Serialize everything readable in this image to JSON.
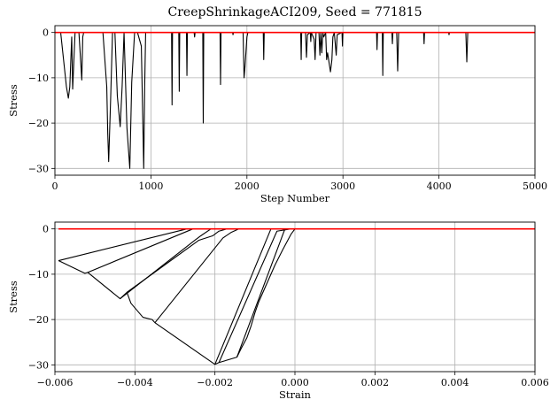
{
  "chart_data": [
    {
      "type": "line",
      "title": "CreepShrinkageACI209, Seed = 771815",
      "xlabel": "Step Number",
      "ylabel": "Stress",
      "xlim": [
        0,
        5000
      ],
      "ylim": [
        -31.5,
        1.5
      ],
      "xticks": [
        0,
        1000,
        2000,
        3000,
        4000,
        5000
      ],
      "xtick_labels": [
        "0",
        "1000",
        "2000",
        "3000",
        "4000",
        "5000"
      ],
      "yticks": [
        0,
        -10,
        -20,
        -30
      ],
      "ytick_labels": [
        "0",
        "−10",
        "−20",
        "−30"
      ],
      "grid": true,
      "series": [
        {
          "color": "#000000",
          "x": [
            0,
            60,
            120,
            140,
            155,
            175,
            185,
            210,
            250,
            280,
            290,
            300,
            420,
            500,
            540,
            550,
            560,
            580,
            600,
            610,
            625,
            650,
            680,
            700,
            720,
            750,
            780,
            800,
            830,
            860,
            900,
            925,
            935,
            945,
            1000,
            1215,
            1220,
            1225,
            1240,
            1290,
            1295,
            1300,
            1310,
            1370,
            1375,
            1380,
            1450,
            1455,
            1460,
            1540,
            1545,
            1550,
            1720,
            1725,
            1730,
            1850,
            1855,
            1860,
            1960,
            1970,
            1980,
            2000,
            2010,
            2170,
            2175,
            2180,
            2560,
            2565,
            2570,
            2610,
            2620,
            2630,
            2660,
            2665,
            2670,
            2700,
            2710,
            2720,
            2750,
            2760,
            2770,
            2780,
            2790,
            2800,
            2820,
            2830,
            2840,
            2870,
            2885,
            2895,
            2910,
            2930,
            2940,
            2990,
            2995,
            3000,
            3350,
            3355,
            3360,
            3410,
            3415,
            3420,
            3510,
            3515,
            3520,
            3560,
            3570,
            3580,
            3840,
            3845,
            3850,
            4100,
            4105,
            4110,
            4280,
            4290,
            4300,
            5000
          ],
          "y": [
            0,
            0,
            -12,
            -14.5,
            -12,
            -1,
            -12.5,
            0,
            0,
            -10.5,
            -1,
            0,
            0,
            0,
            -12,
            -22,
            -28.5,
            -15,
            0,
            0,
            0,
            -14,
            -20.8,
            -12,
            0,
            -21,
            -30,
            -11,
            0,
            0,
            -3,
            -30,
            -12,
            0,
            0,
            0,
            -16,
            0,
            0,
            0,
            -13,
            0,
            0,
            0,
            -9.5,
            0,
            0,
            -1,
            0,
            0,
            -20,
            0,
            0,
            -11.5,
            0,
            0,
            -0.5,
            0,
            0,
            -10,
            -7.5,
            -1,
            0,
            0,
            -6,
            0,
            0,
            -6,
            0,
            0,
            -5.5,
            -0.5,
            0,
            -2,
            0,
            -1.5,
            -6,
            0,
            0,
            -5,
            0,
            -4.5,
            0,
            -1,
            0,
            -6,
            -4.5,
            -8.7,
            -6,
            -1,
            0,
            -5,
            -0.5,
            0,
            -3,
            0,
            0,
            -3.8,
            0,
            0,
            -9.5,
            0,
            0,
            -2.5,
            0,
            0,
            -8.5,
            0,
            0,
            -2.5,
            0,
            0,
            -0.5,
            0,
            0,
            -6.5,
            0,
            0
          ]
        },
        {
          "color": "#ff0000",
          "x": [
            0,
            5000
          ],
          "y": [
            0,
            0
          ]
        }
      ]
    },
    {
      "type": "line",
      "title": "",
      "xlabel": "Strain",
      "ylabel": "Stress",
      "xlim": [
        -0.006,
        0.006
      ],
      "ylim": [
        -31.5,
        1.5
      ],
      "xticks": [
        -0.006,
        -0.004,
        -0.002,
        0.0,
        0.002,
        0.004,
        0.006
      ],
      "xtick_labels": [
        "−0.006",
        "−0.004",
        "−0.002",
        "0.000",
        "0.002",
        "0.004",
        "0.006"
      ],
      "yticks": [
        0,
        -10,
        -20,
        -30
      ],
      "ytick_labels": [
        "0",
        "−10",
        "−20",
        "−30"
      ],
      "grid": true,
      "series": [
        {
          "color": "#000000",
          "x": [
            -0.00591,
            -0.00525,
            -0.00518,
            -0.00437,
            -0.0042,
            -0.0041,
            -0.0038,
            -0.00357,
            -0.0035,
            -0.002,
            -0.0019,
            -0.00145,
            -0.00135,
            -0.0012,
            -0.0011,
            -0.001,
            -0.0009,
            -0.0007,
            -0.0005,
            -0.0003,
            -0.0001,
            0.0
          ],
          "y": [
            -7.0,
            -9.8,
            -9.6,
            -15.4,
            -14.0,
            -16.4,
            -19.5,
            -20.0,
            -20.7,
            -29.9,
            -29.5,
            -28.3,
            -26.5,
            -24.0,
            -21.5,
            -18.5,
            -16.0,
            -12.0,
            -8.0,
            -4.5,
            -1.2,
            0.0
          ]
        },
        {
          "color": "#000000",
          "x": [
            -0.00591,
            -0.0027
          ],
          "y": [
            -7.0,
            0
          ]
        },
        {
          "color": "#000000",
          "x": [
            -0.00518,
            -0.00255
          ],
          "y": [
            -9.6,
            0
          ]
        },
        {
          "color": "#000000",
          "x": [
            -0.00437,
            -0.0025,
            -0.00235,
            -0.0021
          ],
          "y": [
            -15.4,
            -2.5,
            -1.5,
            0
          ]
        },
        {
          "color": "#000000",
          "x": [
            -0.0042,
            -0.0024,
            -0.00205,
            -0.0019,
            -0.0017
          ],
          "y": [
            -14.0,
            -2.5,
            -1.5,
            -0.5,
            0
          ]
        },
        {
          "color": "#000000",
          "x": [
            -0.0035,
            -0.0018,
            -0.0016,
            -0.0014
          ],
          "y": [
            -20.7,
            -2.0,
            -0.8,
            0
          ]
        },
        {
          "color": "#000000",
          "x": [
            -0.002,
            -0.0006
          ],
          "y": [
            -29.9,
            0
          ]
        },
        {
          "color": "#000000",
          "x": [
            -0.0019,
            -0.00045,
            -0.0001
          ],
          "y": [
            -29.5,
            -0.5,
            0
          ]
        },
        {
          "color": "#000000",
          "x": [
            -0.00145,
            -0.00025
          ],
          "y": [
            -28.3,
            0
          ]
        },
        {
          "color": "#ff0000",
          "x": [
            -0.00591,
            0.006
          ],
          "y": [
            0,
            0
          ]
        }
      ]
    }
  ]
}
